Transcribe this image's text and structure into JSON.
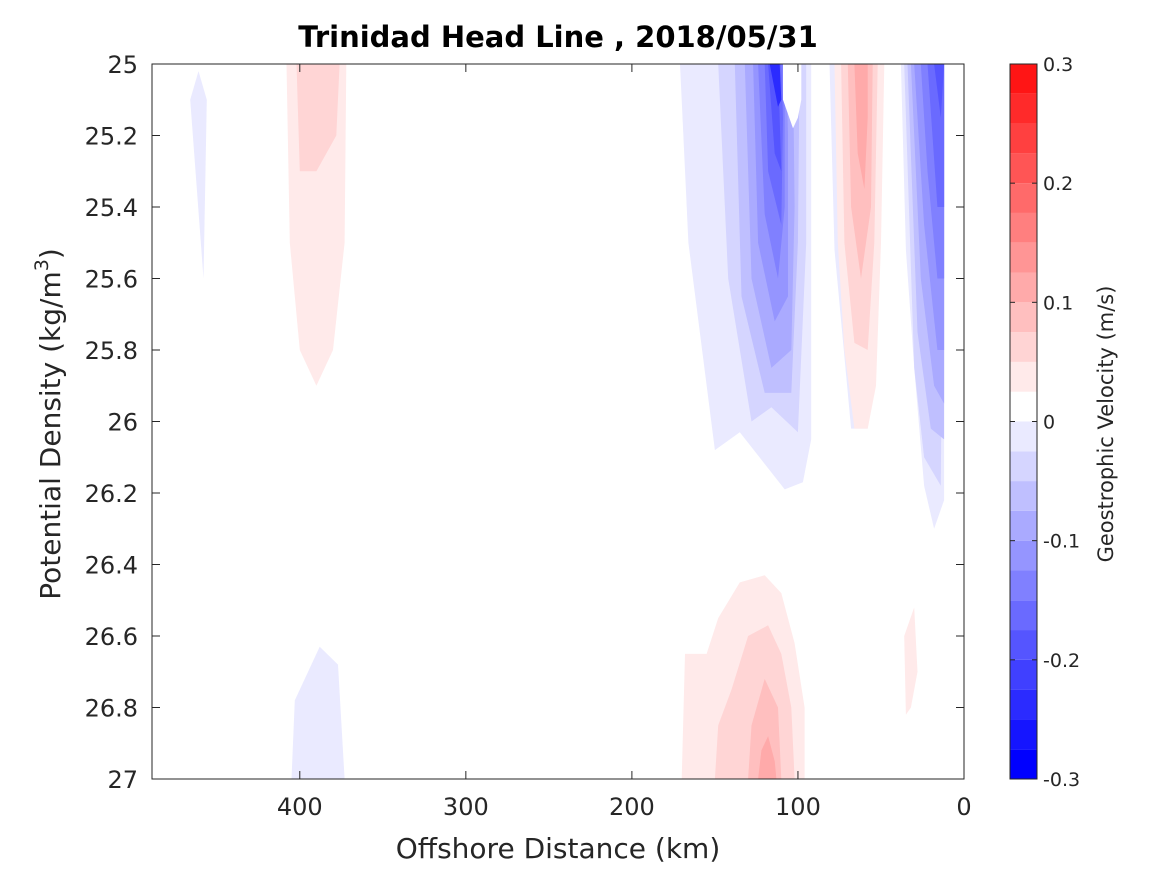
{
  "chart_data": {
    "type": "contour",
    "title": "Trinidad Head Line , 2018/05/31",
    "xlabel": "Offshore Distance (km)",
    "ylabel_main": "Potential Density (kg/m",
    "ylabel_sup": "3",
    "ylabel_close": ")",
    "colorbar_label": "Geostrophic Velocity (m/s)",
    "xlim": [
      489,
      0
    ],
    "x_reversed": true,
    "ylim": [
      25,
      27
    ],
    "y_reversed": true,
    "x_ticks": [
      400,
      300,
      200,
      100,
      0
    ],
    "x_tick_labels": [
      "400",
      "300",
      "200",
      "100",
      "0"
    ],
    "y_ticks": [
      25,
      25.2,
      25.4,
      25.6,
      25.8,
      26,
      26.2,
      26.4,
      26.6,
      26.8,
      27
    ],
    "y_tick_labels": [
      "25",
      "25.2",
      "25.4",
      "25.6",
      "25.8",
      "26",
      "26.2",
      "26.4",
      "26.6",
      "26.8",
      "27"
    ],
    "colorbar": {
      "range": [
        -0.3,
        0.3
      ],
      "step": 0.025,
      "ticks": [
        0.3,
        0.2,
        0.1,
        0,
        -0.1,
        -0.2,
        -0.3
      ],
      "tick_labels": [
        "0.3",
        "0.2",
        "0.1",
        "0",
        "-0.1",
        "-0.2",
        "-0.3"
      ],
      "negative_color": "#0000ff",
      "zero_color": "#ffffff",
      "positive_color": "#ff0000"
    },
    "regions": [
      {
        "level": -0.025,
        "points": [
          [
            171,
            25
          ],
          [
            166,
            25.5
          ],
          [
            150,
            26.08
          ],
          [
            135,
            26.03
          ],
          [
            108,
            26.19
          ],
          [
            97,
            26.17
          ],
          [
            92,
            26.05
          ],
          [
            92,
            25
          ],
          [
            81,
            25
          ],
          [
            78,
            25.52
          ],
          [
            68,
            26.02
          ],
          [
            58,
            26.02
          ],
          [
            52,
            25.52
          ],
          [
            50,
            25
          ],
          [
            38,
            25
          ],
          [
            35,
            25.52
          ],
          [
            30,
            25.85
          ],
          [
            24,
            26.18
          ],
          [
            18,
            26.3
          ],
          [
            12,
            26.22
          ],
          [
            12,
            25
          ]
        ]
      },
      {
        "level": -0.025,
        "points": [
          [
            461,
            25.02
          ],
          [
            456,
            25.1
          ],
          [
            458,
            25.6
          ],
          [
            466,
            25.1
          ]
        ]
      },
      {
        "level": -0.025,
        "points": [
          [
            405,
            27
          ],
          [
            403,
            26.78
          ],
          [
            388,
            26.63
          ],
          [
            377,
            26.68
          ],
          [
            373,
            27
          ]
        ]
      },
      {
        "level": -0.05,
        "points": [
          [
            148,
            25
          ],
          [
            142,
            25.6
          ],
          [
            128,
            26.0
          ],
          [
            116,
            25.96
          ],
          [
            100,
            26.03
          ],
          [
            95,
            25.5
          ],
          [
            95,
            25
          ],
          [
            90,
            25
          ]
        ]
      },
      {
        "level": -0.05,
        "points": [
          [
            36,
            25
          ],
          [
            30,
            25.85
          ],
          [
            24,
            26.1
          ],
          [
            14,
            26.18
          ],
          [
            12,
            25
          ]
        ]
      },
      {
        "level": -0.075,
        "points": [
          [
            138,
            25
          ],
          [
            134,
            25.65
          ],
          [
            120,
            25.92
          ],
          [
            104,
            25.92
          ],
          [
            100,
            25.5
          ],
          [
            99,
            25
          ]
        ]
      },
      {
        "level": -0.075,
        "points": [
          [
            34,
            25
          ],
          [
            28,
            25.75
          ],
          [
            20,
            26.02
          ],
          [
            12,
            26.05
          ],
          [
            12,
            25
          ]
        ]
      },
      {
        "level": -0.1,
        "points": [
          [
            132,
            25
          ],
          [
            128,
            25.6
          ],
          [
            116,
            25.85
          ],
          [
            104,
            25.8
          ],
          [
            102,
            25.4
          ],
          [
            103,
            25
          ]
        ]
      },
      {
        "level": -0.1,
        "points": [
          [
            32,
            25
          ],
          [
            26,
            25.6
          ],
          [
            18,
            25.9
          ],
          [
            12,
            25.95
          ],
          [
            12,
            25
          ]
        ]
      },
      {
        "level": -0.125,
        "points": [
          [
            127,
            25
          ],
          [
            124,
            25.5
          ],
          [
            114,
            25.72
          ],
          [
            106,
            25.65
          ],
          [
            106,
            25.2
          ],
          [
            107,
            25
          ]
        ]
      },
      {
        "level": -0.125,
        "points": [
          [
            30,
            25
          ],
          [
            24,
            25.45
          ],
          [
            16,
            25.8
          ],
          [
            12,
            25.8
          ],
          [
            12,
            25
          ]
        ]
      },
      {
        "level": -0.15,
        "points": [
          [
            124,
            25
          ],
          [
            120,
            25.42
          ],
          [
            112,
            25.6
          ],
          [
            108,
            25.4
          ],
          [
            108,
            25
          ]
        ]
      },
      {
        "level": -0.15,
        "points": [
          [
            26,
            25
          ],
          [
            22,
            25.3
          ],
          [
            16,
            25.6
          ],
          [
            12,
            25.6
          ],
          [
            12,
            25
          ]
        ]
      },
      {
        "level": -0.175,
        "points": [
          [
            120,
            25
          ],
          [
            118,
            25.3
          ],
          [
            110,
            25.45
          ],
          [
            109,
            25.15
          ],
          [
            110,
            25
          ]
        ]
      },
      {
        "level": -0.175,
        "points": [
          [
            22,
            25
          ],
          [
            16,
            25.4
          ],
          [
            12,
            25.4
          ],
          [
            12,
            25
          ]
        ]
      },
      {
        "level": -0.2,
        "points": [
          [
            118,
            25
          ],
          [
            114,
            25.25
          ],
          [
            110,
            25.3
          ],
          [
            112,
            25
          ]
        ]
      },
      {
        "level": -0.2,
        "points": [
          [
            18,
            25
          ],
          [
            14,
            25.15
          ],
          [
            12,
            25
          ],
          [
            12,
            25
          ]
        ]
      },
      {
        "level": -0.25,
        "points": [
          [
            117,
            25
          ],
          [
            112,
            25.12
          ],
          [
            110,
            25.1
          ],
          [
            111,
            25
          ]
        ]
      },
      {
        "level": 0,
        "points": [
          [
            109,
            25
          ],
          [
            109,
            25.1
          ],
          [
            103,
            25.18
          ],
          [
            100,
            25.15
          ],
          [
            98,
            25.1
          ],
          [
            98,
            25
          ]
        ]
      },
      {
        "level": 0,
        "points": [
          [
            78,
            25
          ],
          [
            72,
            25.1
          ],
          [
            66,
            25.0
          ]
        ]
      },
      {
        "level": 0.025,
        "points": [
          [
            408,
            25
          ],
          [
            406,
            25.5
          ],
          [
            400,
            25.8
          ],
          [
            390,
            25.9
          ],
          [
            380,
            25.8
          ],
          [
            373,
            25.5
          ],
          [
            372,
            25
          ]
        ]
      },
      {
        "level": 0.025,
        "points": [
          [
            78,
            25
          ],
          [
            76,
            25.5
          ],
          [
            72,
            25.8
          ],
          [
            66,
            26.02
          ],
          [
            58,
            26.02
          ],
          [
            53,
            25.9
          ],
          [
            50,
            25.5
          ],
          [
            48,
            25
          ]
        ]
      },
      {
        "level": 0.025,
        "points": [
          [
            170,
            27
          ],
          [
            168,
            26.65
          ],
          [
            155,
            26.65
          ],
          [
            148,
            26.55
          ],
          [
            135,
            26.45
          ],
          [
            120,
            26.43
          ],
          [
            110,
            26.48
          ],
          [
            102,
            26.62
          ],
          [
            96,
            26.8
          ],
          [
            96,
            27
          ]
        ]
      },
      {
        "level": 0.025,
        "points": [
          [
            30,
            26.52
          ],
          [
            28,
            26.7
          ],
          [
            32,
            26.8
          ],
          [
            35,
            26.82
          ],
          [
            36,
            26.6
          ]
        ]
      },
      {
        "level": 0.05,
        "points": [
          [
            402,
            25
          ],
          [
            400,
            25.3
          ],
          [
            390,
            25.3
          ],
          [
            378,
            25.2
          ],
          [
            376,
            25
          ]
        ]
      },
      {
        "level": 0.05,
        "points": [
          [
            74,
            25
          ],
          [
            72,
            25.5
          ],
          [
            66,
            25.78
          ],
          [
            58,
            25.8
          ],
          [
            54,
            25.5
          ],
          [
            52,
            25
          ]
        ]
      },
      {
        "level": 0.05,
        "points": [
          [
            150,
            27
          ],
          [
            148,
            26.85
          ],
          [
            140,
            26.75
          ],
          [
            130,
            26.6
          ],
          [
            118,
            26.57
          ],
          [
            110,
            26.65
          ],
          [
            104,
            26.8
          ],
          [
            102,
            27
          ]
        ]
      },
      {
        "level": 0.075,
        "points": [
          [
            70,
            25
          ],
          [
            68,
            25.4
          ],
          [
            62,
            25.6
          ],
          [
            56,
            25.4
          ],
          [
            55,
            25
          ]
        ]
      },
      {
        "level": 0.075,
        "points": [
          [
            130,
            27
          ],
          [
            128,
            26.85
          ],
          [
            120,
            26.72
          ],
          [
            112,
            26.8
          ],
          [
            110,
            27
          ]
        ]
      },
      {
        "level": 0.1,
        "points": [
          [
            66,
            25
          ],
          [
            64,
            25.25
          ],
          [
            60,
            25.35
          ],
          [
            58,
            25.15
          ],
          [
            58,
            25
          ]
        ]
      },
      {
        "level": 0.1,
        "points": [
          [
            124,
            27
          ],
          [
            122,
            26.92
          ],
          [
            118,
            26.88
          ],
          [
            114,
            26.95
          ],
          [
            113,
            27
          ]
        ]
      }
    ]
  }
}
